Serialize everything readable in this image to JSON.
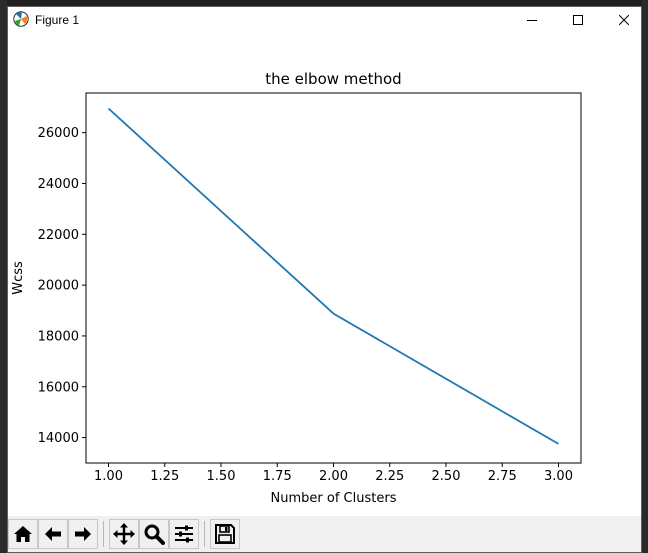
{
  "window": {
    "title": "Figure 1"
  },
  "toolbar": {
    "buttons": [
      {
        "name": "home-icon"
      },
      {
        "name": "back-icon"
      },
      {
        "name": "forward-icon"
      },
      {
        "name": "pan-icon"
      },
      {
        "name": "zoom-icon"
      },
      {
        "name": "configure-subplots-icon"
      },
      {
        "name": "save-icon"
      }
    ]
  },
  "chart_data": {
    "type": "line",
    "title": "the elbow method",
    "xlabel": "Number of Clusters",
    "ylabel": "Wcss",
    "x": [
      1,
      2,
      3
    ],
    "series": [
      {
        "values": [
          26950,
          18880,
          13750
        ],
        "color": "#1f77b4"
      }
    ],
    "xlim": [
      0.9,
      3.1
    ],
    "ylim": [
      13000,
      27560
    ],
    "xticks": [
      "1.00",
      "1.25",
      "1.50",
      "1.75",
      "2.00",
      "2.25",
      "2.50",
      "2.75",
      "3.00"
    ],
    "yticks": [
      "14000",
      "16000",
      "18000",
      "20000",
      "22000",
      "24000",
      "26000"
    ],
    "grid": false
  }
}
